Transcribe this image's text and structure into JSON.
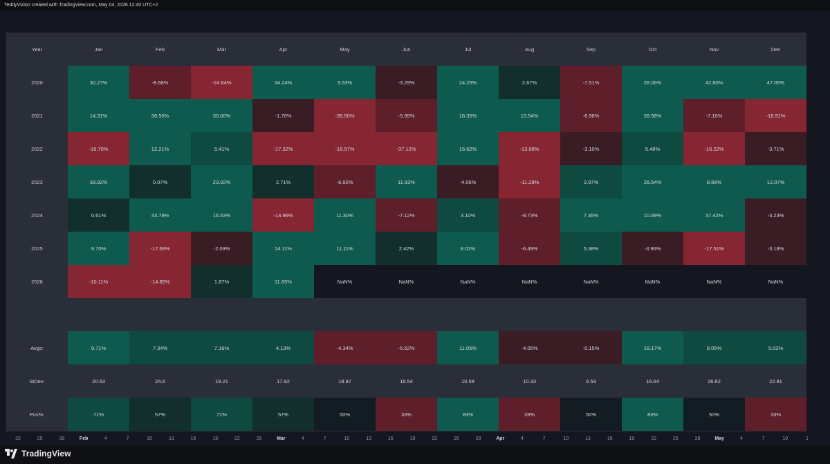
{
  "attribution": "TeddyVizion created with TradingView.com, May 04, 2026 12:40 UTC+2",
  "brand": "TradingView",
  "colors": {
    "pos_strong": "#0e5a4e",
    "pos_mid": "#0f4a41",
    "pos_weak": "#122f2c",
    "neutral": "#141620",
    "neg_weak": "#3a1c25",
    "neg_mid": "#5e1e2a",
    "neg_strong": "#862633"
  },
  "table": {
    "header": [
      "Year",
      "Jan",
      "Feb",
      "Mar",
      "Apr",
      "May",
      "Jun",
      "Jul",
      "Aug",
      "Sep",
      "Oct",
      "Nov",
      "Dec"
    ],
    "rows": [
      {
        "label": "2020",
        "cells": [
          {
            "text": "30.27%",
            "level": "pos_strong"
          },
          {
            "text": "-8.68%",
            "level": "neg_mid"
          },
          {
            "text": "-24.64%",
            "level": "neg_strong"
          },
          {
            "text": "34.24%",
            "level": "pos_strong"
          },
          {
            "text": "9.53%",
            "level": "pos_strong"
          },
          {
            "text": "-3.29%",
            "level": "neg_weak"
          },
          {
            "text": "24.25%",
            "level": "pos_strong"
          },
          {
            "text": "2.67%",
            "level": "pos_weak"
          },
          {
            "text": "-7.51%",
            "level": "neg_mid"
          },
          {
            "text": "28.06%",
            "level": "pos_strong"
          },
          {
            "text": "42.80%",
            "level": "pos_strong"
          },
          {
            "text": "47.05%",
            "level": "pos_strong"
          }
        ]
      },
      {
        "label": "2021",
        "cells": [
          {
            "text": "14.31%",
            "level": "pos_strong"
          },
          {
            "text": "36.50%",
            "level": "pos_strong"
          },
          {
            "text": "30.00%",
            "level": "pos_strong"
          },
          {
            "text": "-1.70%",
            "level": "neg_weak"
          },
          {
            "text": "-35.50%",
            "level": "neg_strong"
          },
          {
            "text": "-5.95%",
            "level": "neg_mid"
          },
          {
            "text": "18.35%",
            "level": "pos_strong"
          },
          {
            "text": "13.54%",
            "level": "pos_strong"
          },
          {
            "text": "-6.98%",
            "level": "neg_mid"
          },
          {
            "text": "39.98%",
            "level": "pos_strong"
          },
          {
            "text": "-7.10%",
            "level": "neg_mid"
          },
          {
            "text": "-18.91%",
            "level": "neg_strong"
          }
        ]
      },
      {
        "label": "2022",
        "cells": [
          {
            "text": "-16.70%",
            "level": "neg_strong"
          },
          {
            "text": "12.21%",
            "level": "pos_strong"
          },
          {
            "text": "5.41%",
            "level": "pos_mid"
          },
          {
            "text": "-17.32%",
            "level": "neg_strong"
          },
          {
            "text": "-15.57%",
            "level": "neg_strong"
          },
          {
            "text": "-37.12%",
            "level": "neg_strong"
          },
          {
            "text": "16.62%",
            "level": "pos_strong"
          },
          {
            "text": "-13.98%",
            "level": "neg_strong"
          },
          {
            "text": "-3.10%",
            "level": "neg_weak"
          },
          {
            "text": "5.48%",
            "level": "pos_mid"
          },
          {
            "text": "-16.22%",
            "level": "neg_strong"
          },
          {
            "text": "-3.71%",
            "level": "neg_weak"
          }
        ]
      },
      {
        "label": "2023",
        "cells": [
          {
            "text": "39.92%",
            "level": "pos_strong"
          },
          {
            "text": "0.07%",
            "level": "pos_weak"
          },
          {
            "text": "23.02%",
            "level": "pos_strong"
          },
          {
            "text": "2.71%",
            "level": "pos_weak"
          },
          {
            "text": "-6.92%",
            "level": "neg_mid"
          },
          {
            "text": "11.92%",
            "level": "pos_strong"
          },
          {
            "text": "-4.06%",
            "level": "neg_weak"
          },
          {
            "text": "-11.28%",
            "level": "neg_strong"
          },
          {
            "text": "3.97%",
            "level": "pos_mid"
          },
          {
            "text": "28.54%",
            "level": "pos_strong"
          },
          {
            "text": "8.88%",
            "level": "pos_strong"
          },
          {
            "text": "12.07%",
            "level": "pos_strong"
          }
        ]
      },
      {
        "label": "2024",
        "cells": [
          {
            "text": "0.61%",
            "level": "pos_weak"
          },
          {
            "text": "43.79%",
            "level": "pos_strong"
          },
          {
            "text": "16.53%",
            "level": "pos_strong"
          },
          {
            "text": "-14.96%",
            "level": "neg_strong"
          },
          {
            "text": "11.30%",
            "level": "pos_strong"
          },
          {
            "text": "-7.12%",
            "level": "neg_mid"
          },
          {
            "text": "3.10%",
            "level": "pos_mid"
          },
          {
            "text": "-8.73%",
            "level": "neg_mid"
          },
          {
            "text": "7.35%",
            "level": "pos_strong"
          },
          {
            "text": "10.89%",
            "level": "pos_strong"
          },
          {
            "text": "37.42%",
            "level": "pos_strong"
          },
          {
            "text": "-3.23%",
            "level": "neg_weak"
          }
        ]
      },
      {
        "label": "2025",
        "cells": [
          {
            "text": "9.70%",
            "level": "pos_strong"
          },
          {
            "text": "-17.69%",
            "level": "neg_strong"
          },
          {
            "text": "-2.09%",
            "level": "neg_weak"
          },
          {
            "text": "14.11%",
            "level": "pos_strong"
          },
          {
            "text": "11.11%",
            "level": "pos_strong"
          },
          {
            "text": "2.42%",
            "level": "pos_weak"
          },
          {
            "text": "8.01%",
            "level": "pos_strong"
          },
          {
            "text": "-6.49%",
            "level": "neg_mid"
          },
          {
            "text": "5.38%",
            "level": "pos_mid"
          },
          {
            "text": "-3.96%",
            "level": "neg_weak"
          },
          {
            "text": "-17.51%",
            "level": "neg_strong"
          },
          {
            "text": "-3.18%",
            "level": "neg_weak"
          }
        ]
      },
      {
        "label": "2026",
        "cells": [
          {
            "text": "-10.11%",
            "level": "neg_strong"
          },
          {
            "text": "-14.85%",
            "level": "neg_strong"
          },
          {
            "text": "1.87%",
            "level": "pos_weak"
          },
          {
            "text": "11.85%",
            "level": "pos_strong"
          },
          {
            "text": "NaN%",
            "level": "neutral"
          },
          {
            "text": "NaN%",
            "level": "neutral"
          },
          {
            "text": "NaN%",
            "level": "neutral"
          },
          {
            "text": "NaN%",
            "level": "neutral"
          },
          {
            "text": "NaN%",
            "level": "neutral"
          },
          {
            "text": "NaN%",
            "level": "neutral"
          },
          {
            "text": "NaN%",
            "level": "neutral"
          },
          {
            "text": "NaN%",
            "level": "neutral"
          }
        ]
      }
    ],
    "summary": [
      {
        "label": "Avgs:",
        "cells": [
          {
            "text": "9.71%",
            "level": "pos_strong"
          },
          {
            "text": "7.34%",
            "level": "pos_mid"
          },
          {
            "text": "7.16%",
            "level": "pos_mid"
          },
          {
            "text": "4.13%",
            "level": "pos_mid"
          },
          {
            "text": "-4.34%",
            "level": "neg_mid"
          },
          {
            "text": "-6.52%",
            "level": "neg_mid"
          },
          {
            "text": "11.05%",
            "level": "pos_strong"
          },
          {
            "text": "-4.05%",
            "level": "neg_weak"
          },
          {
            "text": "-0.15%",
            "level": "neg_weak"
          },
          {
            "text": "18.17%",
            "level": "pos_strong"
          },
          {
            "text": "8.05%",
            "level": "pos_mid"
          },
          {
            "text": "5.02%",
            "level": "pos_mid"
          }
        ]
      },
      {
        "label": "StDev:",
        "cells": [
          {
            "text": "20.53",
            "level": "none"
          },
          {
            "text": "24.6",
            "level": "none"
          },
          {
            "text": "18.21",
            "level": "none"
          },
          {
            "text": "17.92",
            "level": "none"
          },
          {
            "text": "18.87",
            "level": "none"
          },
          {
            "text": "16.54",
            "level": "none"
          },
          {
            "text": "10.58",
            "level": "none"
          },
          {
            "text": "10.33",
            "level": "none"
          },
          {
            "text": "6.53",
            "level": "none"
          },
          {
            "text": "16.64",
            "level": "none"
          },
          {
            "text": "26.62",
            "level": "none"
          },
          {
            "text": "22.81",
            "level": "none"
          }
        ]
      },
      {
        "label": "Pos%:",
        "cells": [
          {
            "text": "71%",
            "level": "pos_mid"
          },
          {
            "text": "57%",
            "level": "pos_weak"
          },
          {
            "text": "71%",
            "level": "pos_mid"
          },
          {
            "text": "57%",
            "level": "pos_weak"
          },
          {
            "text": "50%",
            "level": "neutral_dark"
          },
          {
            "text": "33%",
            "level": "neg_mid"
          },
          {
            "text": "83%",
            "level": "pos_strong"
          },
          {
            "text": "33%",
            "level": "neg_mid"
          },
          {
            "text": "50%",
            "level": "neutral_dark"
          },
          {
            "text": "83%",
            "level": "pos_strong"
          },
          {
            "text": "50%",
            "level": "neutral_dark"
          },
          {
            "text": "33%",
            "level": "neg_mid"
          }
        ]
      }
    ]
  },
  "time_axis": [
    {
      "label": "22",
      "bold": false
    },
    {
      "label": "25",
      "bold": false
    },
    {
      "label": "28",
      "bold": false
    },
    {
      "label": "Feb",
      "bold": true
    },
    {
      "label": "4",
      "bold": false
    },
    {
      "label": "7",
      "bold": false
    },
    {
      "label": "10",
      "bold": false
    },
    {
      "label": "13",
      "bold": false
    },
    {
      "label": "16",
      "bold": false
    },
    {
      "label": "19",
      "bold": false
    },
    {
      "label": "22",
      "bold": false
    },
    {
      "label": "25",
      "bold": false
    },
    {
      "label": "Mar",
      "bold": true
    },
    {
      "label": "4",
      "bold": false
    },
    {
      "label": "7",
      "bold": false
    },
    {
      "label": "10",
      "bold": false
    },
    {
      "label": "13",
      "bold": false
    },
    {
      "label": "16",
      "bold": false
    },
    {
      "label": "19",
      "bold": false
    },
    {
      "label": "22",
      "bold": false
    },
    {
      "label": "25",
      "bold": false
    },
    {
      "label": "28",
      "bold": false
    },
    {
      "label": "Apr",
      "bold": true
    },
    {
      "label": "4",
      "bold": false
    },
    {
      "label": "7",
      "bold": false
    },
    {
      "label": "10",
      "bold": false
    },
    {
      "label": "13",
      "bold": false
    },
    {
      "label": "16",
      "bold": false
    },
    {
      "label": "19",
      "bold": false
    },
    {
      "label": "22",
      "bold": false
    },
    {
      "label": "25",
      "bold": false
    },
    {
      "label": "28",
      "bold": false
    },
    {
      "label": "May",
      "bold": true
    },
    {
      "label": "4",
      "bold": false
    },
    {
      "label": "7",
      "bold": false
    },
    {
      "label": "10",
      "bold": false
    },
    {
      "label": "1",
      "bold": false
    }
  ]
}
